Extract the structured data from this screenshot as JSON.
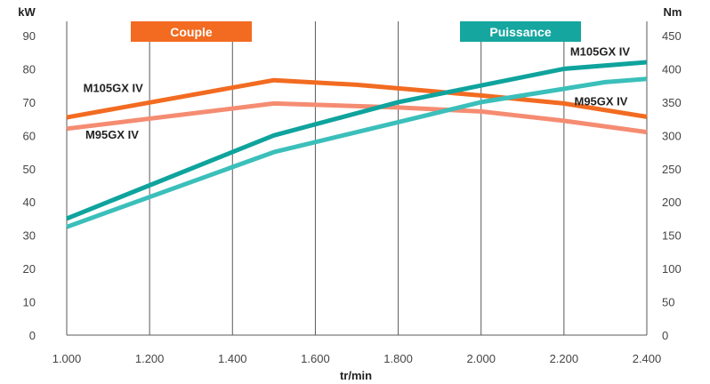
{
  "chart_data": {
    "type": "line",
    "xlabel": "tr/min",
    "x": [
      1000,
      1200,
      1400,
      1600,
      1800,
      2000,
      2200,
      2400
    ],
    "x_tick_labels": [
      "1.000",
      "1.200",
      "1.400",
      "1.600",
      "1.800",
      "2.000",
      "2.200",
      "2.400"
    ],
    "xlim": [
      1000,
      2400
    ],
    "y_left": {
      "label": "kW",
      "ylim": [
        0,
        90
      ],
      "ticks": [
        0,
        10,
        20,
        30,
        40,
        50,
        60,
        70,
        80,
        90
      ]
    },
    "y_right": {
      "label": "Nm",
      "ylim": [
        0,
        450
      ],
      "ticks": [
        0,
        50,
        100,
        150,
        200,
        250,
        300,
        350,
        400,
        450
      ]
    },
    "grid": "vertical",
    "legend": [
      {
        "label": "Couple",
        "color": "#f26b21"
      },
      {
        "label": "Puissance",
        "color": "#16a6a0"
      }
    ],
    "series": [
      {
        "name": "M105GX IV",
        "quantity": "Couple",
        "axis": "right",
        "color": "#f26b21",
        "points": [
          [
            1000,
            327
          ],
          [
            1500,
            383
          ],
          [
            1700,
            376
          ],
          [
            2000,
            360
          ],
          [
            2200,
            348
          ],
          [
            2400,
            328
          ]
        ]
      },
      {
        "name": "M95GX IV",
        "quantity": "Couple",
        "axis": "right",
        "color": "#f58c72",
        "points": [
          [
            1000,
            310
          ],
          [
            1500,
            348
          ],
          [
            1800,
            342
          ],
          [
            2000,
            336
          ],
          [
            2200,
            322
          ],
          [
            2400,
            305
          ]
        ]
      },
      {
        "name": "M105GX IV",
        "quantity": "Puissance",
        "axis": "left",
        "color": "#0fa39d",
        "points": [
          [
            1000,
            35
          ],
          [
            1500,
            60
          ],
          [
            1800,
            70
          ],
          [
            2000,
            75
          ],
          [
            2200,
            80
          ],
          [
            2400,
            82
          ]
        ]
      },
      {
        "name": "M95GX IV",
        "quantity": "Puissance",
        "axis": "left",
        "color": "#3bbfba",
        "points": [
          [
            1000,
            32.5
          ],
          [
            1500,
            55
          ],
          [
            1800,
            64
          ],
          [
            2000,
            70
          ],
          [
            2300,
            76
          ],
          [
            2400,
            77
          ]
        ]
      }
    ],
    "series_labels": [
      {
        "text": "M105GX IV",
        "x": 1040,
        "y": 73
      },
      {
        "text": "M95GX IV",
        "x": 1045,
        "y": 59
      },
      {
        "text": "M105GX IV",
        "x": 2215,
        "y": 84
      },
      {
        "text": "M95GX IV",
        "x": 2225,
        "y": 69
      }
    ]
  }
}
